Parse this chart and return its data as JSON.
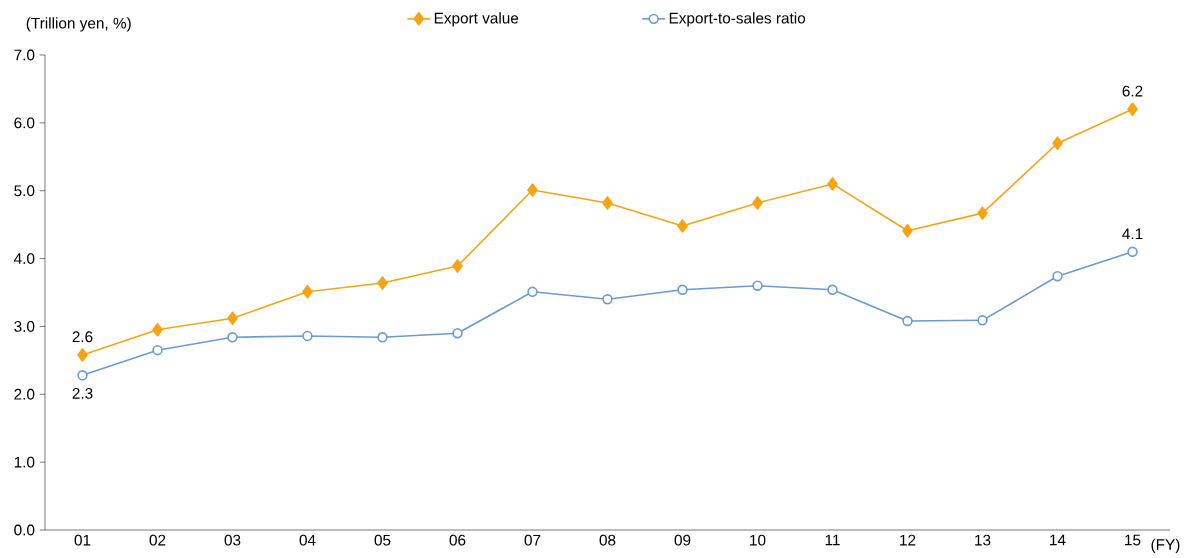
{
  "chart_data": {
    "type": "line",
    "ylabel": "(Trillion yen, %)",
    "xlabel": "(FY)",
    "categories": [
      "01",
      "02",
      "03",
      "04",
      "05",
      "06",
      "07",
      "08",
      "09",
      "10",
      "11",
      "12",
      "13",
      "14",
      "15"
    ],
    "series": [
      {
        "name": "Export value",
        "color": "#f5a416",
        "marker": "diamond",
        "values": [
          2.58,
          2.95,
          3.12,
          3.51,
          3.64,
          3.89,
          5.01,
          4.82,
          4.48,
          4.82,
          5.1,
          4.41,
          4.67,
          5.7,
          6.2
        ],
        "value_labels": [
          "2.6",
          null,
          null,
          null,
          null,
          null,
          null,
          null,
          null,
          null,
          null,
          null,
          null,
          null,
          "6.2"
        ]
      },
      {
        "name": "Export-to-sales ratio",
        "color": "#6b9bd2",
        "marker": "circle",
        "values": [
          2.28,
          2.65,
          2.84,
          2.86,
          2.84,
          2.9,
          3.51,
          3.4,
          3.54,
          3.6,
          3.54,
          3.08,
          3.09,
          3.74,
          4.1
        ],
        "value_labels": [
          "2.3",
          null,
          null,
          null,
          null,
          null,
          null,
          null,
          null,
          null,
          null,
          null,
          null,
          null,
          "4.1"
        ]
      }
    ],
    "ylim": [
      0,
      7
    ],
    "yticks": [
      {
        "value": 0,
        "label": "0.0"
      },
      {
        "value": 1,
        "label": "1.0"
      },
      {
        "value": 2,
        "label": "2.0"
      },
      {
        "value": 3,
        "label": "3.0"
      },
      {
        "value": 4,
        "label": "4.0"
      },
      {
        "value": 5,
        "label": "5.0"
      },
      {
        "value": 6,
        "label": "6.0"
      },
      {
        "value": 7,
        "label": "7.0"
      }
    ],
    "grid": false,
    "legend": "top",
    "line_style": "solid"
  }
}
